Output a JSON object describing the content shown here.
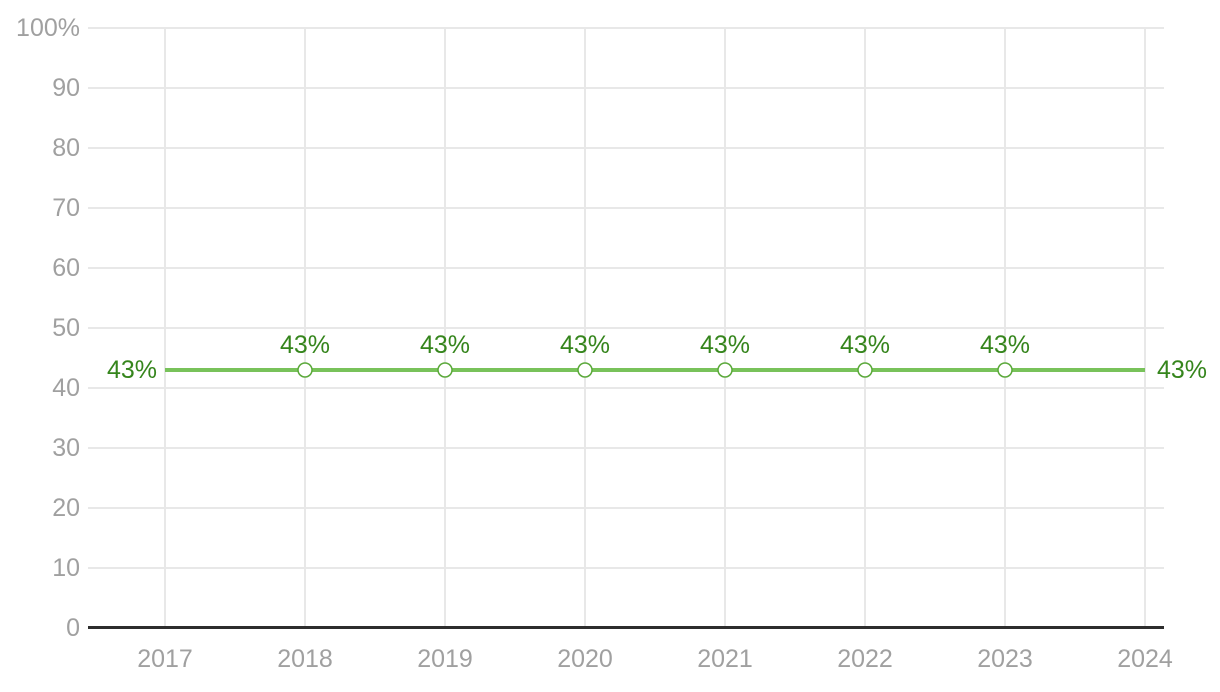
{
  "chart_data": {
    "type": "line",
    "title": "",
    "xlabel": "",
    "ylabel": "",
    "categories": [
      "2017",
      "2018",
      "2019",
      "2020",
      "2021",
      "2022",
      "2023",
      "2024"
    ],
    "series": [
      {
        "name": "",
        "values": [
          43,
          43,
          43,
          43,
          43,
          43,
          43,
          43
        ]
      }
    ],
    "points": [
      {
        "category": "2017",
        "value": 43,
        "label": "43%",
        "label_position": "left",
        "marker": false
      },
      {
        "category": "2018",
        "value": 43,
        "label": "43%",
        "label_position": "above",
        "marker": true
      },
      {
        "category": "2019",
        "value": 43,
        "label": "43%",
        "label_position": "above",
        "marker": true
      },
      {
        "category": "2020",
        "value": 43,
        "label": "43%",
        "label_position": "above",
        "marker": true
      },
      {
        "category": "2021",
        "value": 43,
        "label": "43%",
        "label_position": "above",
        "marker": true
      },
      {
        "category": "2022",
        "value": 43,
        "label": "43%",
        "label_position": "above",
        "marker": true
      },
      {
        "category": "2023",
        "value": 43,
        "label": "43%",
        "label_position": "above",
        "marker": true
      },
      {
        "category": "2024",
        "value": 43,
        "label": "43%",
        "label_position": "right",
        "marker": false
      }
    ],
    "ylim": [
      0,
      100
    ],
    "y_step": 10,
    "y_tick_labels": [
      "0",
      "10",
      "20",
      "30",
      "40",
      "50",
      "60",
      "70",
      "80",
      "90",
      "100%"
    ],
    "grid": true,
    "legend_position": "none"
  },
  "colors": {
    "line": "#78c25a",
    "marker_fill": "#ffffff",
    "marker_stroke": "#5aa839",
    "point_label": "#35851c",
    "tick_label": "#a0a0a0",
    "grid": "#e8e8e8",
    "axis_line": "#2d2d2d"
  }
}
